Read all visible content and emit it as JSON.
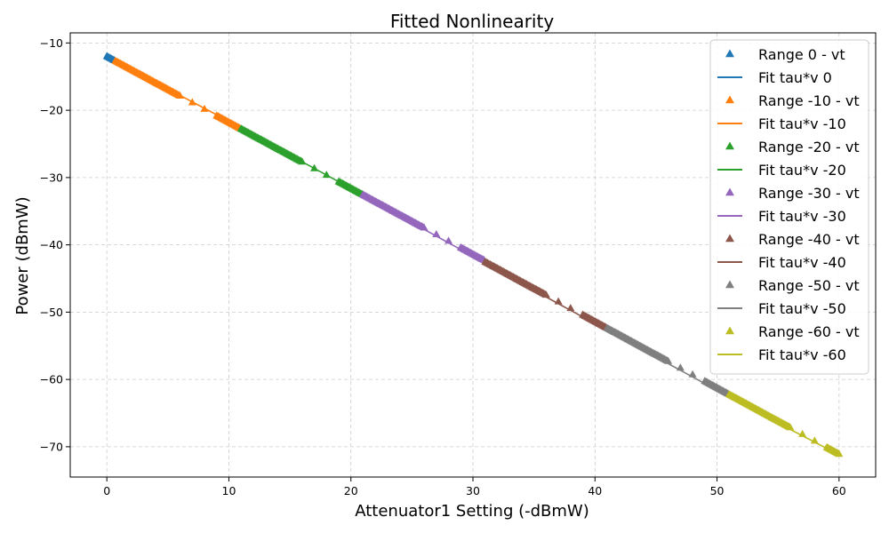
{
  "chart_data": {
    "type": "scatter",
    "title": "Fitted Nonlinearity",
    "xlabel": "Attenuator1 Setting (-dBmW)",
    "ylabel": "Power (dBmW)",
    "xlim": [
      -3,
      63
    ],
    "ylim": [
      -74.5,
      -8.5
    ],
    "xticks": [
      0,
      10,
      20,
      30,
      40,
      50,
      60
    ],
    "yticks": [
      -10,
      -20,
      -30,
      -40,
      -50,
      -60,
      -70
    ],
    "xtick_labels": [
      "0",
      "10",
      "20",
      "30",
      "40",
      "50",
      "60"
    ],
    "ytick_labels": [
      "−10",
      "−20",
      "−30",
      "−40",
      "−50",
      "−60",
      "−70"
    ],
    "grid": true,
    "legend_position": "upper right",
    "series": [
      {
        "name": "Range 0 - vt",
        "fit_name": "Fit tau*v 0",
        "color": "#1f77b4",
        "x_dense": [
          0,
          0.6
        ],
        "x_sparse": [],
        "y_at_x0": -12.0,
        "slope": -0.99,
        "fit_x": [
          0,
          0.6
        ],
        "fit_y": [
          -12.0,
          -12.6
        ]
      },
      {
        "name": "Range -10 - vt",
        "fit_name": "Fit tau*v -10",
        "color": "#ff7f0e",
        "x_dense": [
          0.7,
          6
        ],
        "x_sparse": [
          7,
          8
        ],
        "x_dense2": [
          9,
          10.9
        ],
        "y_at_x0": -12.0,
        "slope": -0.98,
        "fit_x": [
          0.7,
          10.9
        ],
        "fit_y": [
          -12.7,
          -22.5
        ]
      },
      {
        "name": "Range -20 - vt",
        "fit_name": "Fit tau*v -20",
        "color": "#2ca02c",
        "x_dense": [
          11,
          16
        ],
        "x_sparse": [
          17,
          18
        ],
        "x_dense2": [
          19,
          20.9
        ],
        "y_at_x0": -12.0,
        "slope": -0.98,
        "fit_x": [
          11,
          20.9
        ],
        "fit_y": [
          -22.7,
          -32.5
        ]
      },
      {
        "name": "Range -30 - vt",
        "fit_name": "Fit tau*v -30",
        "color": "#9467bd",
        "x_dense": [
          21,
          26
        ],
        "x_sparse": [
          27,
          28
        ],
        "x_dense2": [
          29,
          30.9
        ],
        "y_at_x0": -12.0,
        "slope": -0.98,
        "fit_x": [
          21,
          30.9
        ],
        "fit_y": [
          -32.7,
          -42.6
        ]
      },
      {
        "name": "Range -40 - vt",
        "fit_name": "Fit tau*v -40",
        "color": "#8c564b",
        "x_dense": [
          31,
          36
        ],
        "x_sparse": [
          37,
          38
        ],
        "x_dense2": [
          39,
          40.9
        ],
        "y_at_x0": -12.0,
        "slope": -0.985,
        "fit_x": [
          31,
          40.9
        ],
        "fit_y": [
          -42.8,
          -52.6
        ]
      },
      {
        "name": "Range -50 - vt",
        "fit_name": "Fit tau*v -50",
        "color": "#7f7f7f",
        "x_dense": [
          41,
          46
        ],
        "x_sparse": [
          47,
          48
        ],
        "x_dense2": [
          49,
          50.9
        ],
        "y_at_x0": -12.0,
        "slope": -0.985,
        "fit_x": [
          41,
          50.9
        ],
        "fit_y": [
          -52.7,
          -62.5
        ]
      },
      {
        "name": "Range -60 - vt",
        "fit_name": "Fit tau*v -60",
        "color": "#bcbd22",
        "x_dense": [
          51,
          56
        ],
        "x_sparse": [
          57,
          58
        ],
        "x_dense2": [
          59,
          60
        ],
        "y_at_x0": -12.0,
        "slope": -0.985,
        "fit_x": [
          51,
          60
        ],
        "fit_y": [
          -62.7,
          -71.2
        ]
      }
    ]
  }
}
